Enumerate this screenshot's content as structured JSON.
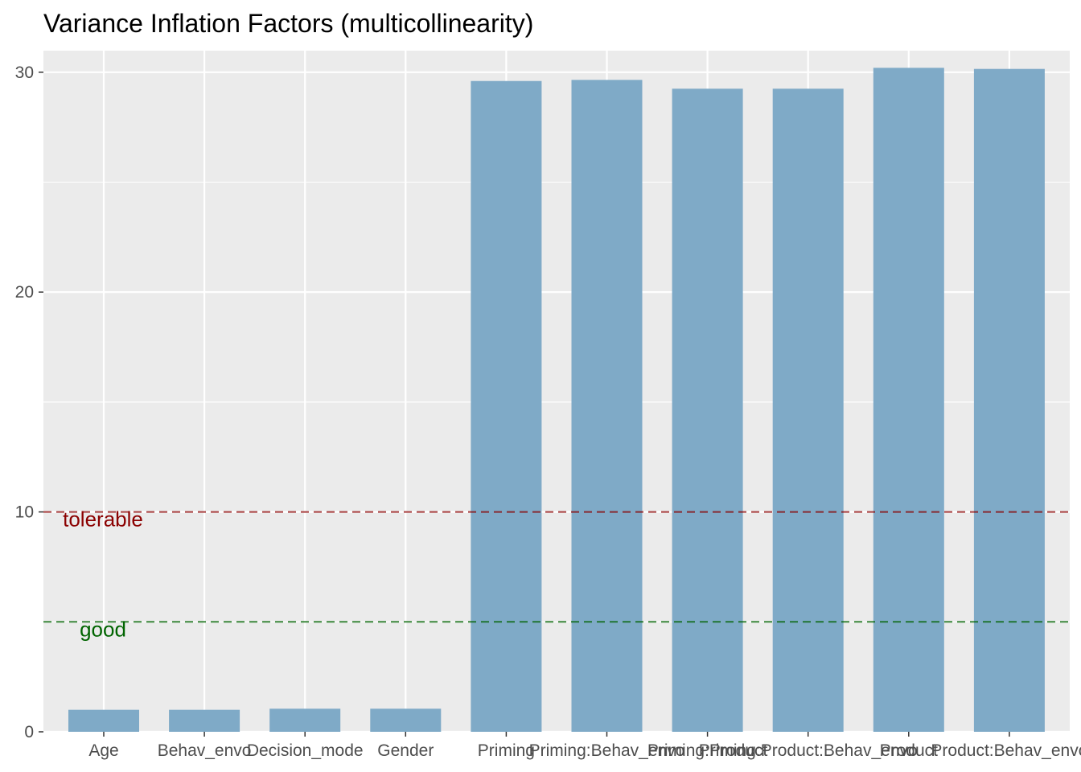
{
  "chart_data": {
    "type": "bar",
    "title": "Variance Inflation Factors (multicollinearity)",
    "xlabel": "",
    "ylabel": "",
    "categories": [
      "Age",
      "Behav_envo",
      "Decision_mode",
      "Gender",
      "Priming",
      "Priming:Behav_envo",
      "Priming:Product",
      "Priming:Product:Behav_envo",
      "Product",
      "Product:Behav_envo"
    ],
    "values": [
      1.0,
      1.0,
      1.05,
      1.05,
      29.6,
      29.65,
      29.25,
      29.25,
      30.2,
      30.15
    ],
    "ylim": [
      0,
      30.5
    ],
    "yticks": [
      0,
      10,
      20,
      30
    ],
    "grid": true,
    "bar_color": "#7faac7",
    "panel_background": "#ebebeb",
    "reference_lines": [
      {
        "label": "tolerable",
        "value": 10,
        "color": "#8b0000"
      },
      {
        "label": "good",
        "value": 5,
        "color": "#006400"
      }
    ]
  }
}
